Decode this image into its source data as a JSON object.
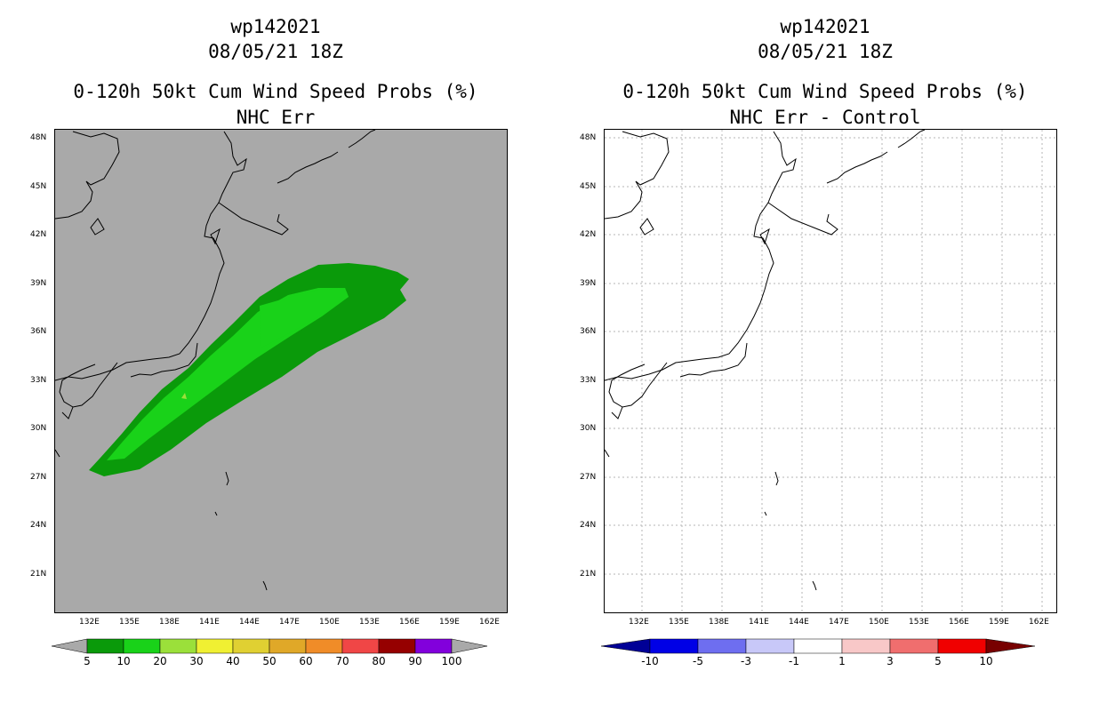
{
  "left": {
    "storm": "wp142021",
    "datetime": "08/05/21 18Z",
    "title": "0-120h 50kt Cum Wind Speed Probs (%)",
    "subtitle": "NHC Err",
    "background": "#a9a9a9",
    "colorbar": {
      "colors": [
        "#0a9a0a",
        "#19d219",
        "#9be03a",
        "#f0f032",
        "#e0d032",
        "#e0a828",
        "#f08c28",
        "#f04646",
        "#960000",
        "#8200dc"
      ],
      "labels": [
        "5",
        "10",
        "20",
        "30",
        "40",
        "50",
        "60",
        "70",
        "80",
        "90",
        "100"
      ]
    }
  },
  "right": {
    "storm": "wp142021",
    "datetime": "08/05/21 18Z",
    "title": "0-120h 50kt Cum Wind Speed Probs (%)",
    "subtitle": "NHC Err - Control",
    "background": "#ffffff",
    "colorbar": {
      "colors": [
        "#0000e6",
        "#6e6ef0",
        "#c8c8f8",
        "#ffffff",
        "#f8c8c8",
        "#f06e6e",
        "#f00000"
      ],
      "labels": [
        "-10",
        "-5",
        "-3",
        "-1",
        "1",
        "3",
        "5",
        "10"
      ],
      "under": "#000096",
      "over": "#780000"
    }
  },
  "axes": {
    "lat_labels": [
      "48N",
      "45N",
      "42N",
      "39N",
      "36N",
      "33N",
      "30N",
      "27N",
      "24N",
      "21N"
    ],
    "lon_labels": [
      "132E",
      "135E",
      "138E",
      "141E",
      "144E",
      "147E",
      "150E",
      "153E",
      "156E",
      "159E",
      "162E"
    ]
  }
}
